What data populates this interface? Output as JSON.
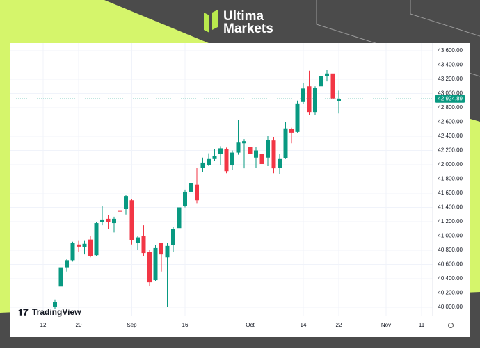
{
  "header": {
    "brand_line1": "Ultima",
    "brand_line2": "Markets"
  },
  "watermark": "TradingView",
  "chart_data": {
    "type": "candlestick",
    "categories": [
      "12",
      null,
      null,
      null,
      null,
      null,
      "20",
      null,
      null,
      null,
      null,
      null,
      null,
      null,
      null,
      "Sep",
      null,
      null,
      null,
      null,
      null,
      null,
      null,
      null,
      "16",
      null,
      null,
      null,
      null,
      null,
      null,
      null,
      null,
      null,
      null,
      "Oct",
      null,
      null,
      null,
      null,
      null,
      null,
      null,
      null,
      "14",
      null,
      null,
      null,
      null,
      null,
      "22",
      null,
      null,
      null,
      null,
      null,
      null,
      null,
      "Nov",
      null,
      null,
      null,
      null,
      null,
      "11"
    ],
    "open": [
      null,
      null,
      40010,
      40290,
      40560,
      40660,
      40880,
      40840,
      40950,
      40730,
      41200,
      41240,
      41180,
      41360,
      41380,
      41500,
      40900,
      41000,
      40780,
      40380,
      40900,
      40700,
      40870,
      41110,
      41420,
      41620,
      41720,
      41960,
      42000,
      42080,
      42150,
      42220,
      41990,
      42170,
      42300,
      42250,
      42100,
      42150,
      42100,
      42340,
      41960,
      42090,
      42500,
      42460,
      42880,
      43100,
      42740,
      43100,
      43240,
      43280,
      42890,
      null,
      null,
      null,
      null,
      null,
      null,
      null,
      null,
      null,
      null,
      null,
      null,
      null,
      null
    ],
    "high": [
      null,
      null,
      40110,
      40590,
      40680,
      40920,
      40930,
      40930,
      41000,
      41200,
      41420,
      41290,
      41270,
      41560,
      41580,
      41520,
      41000,
      41150,
      40800,
      40870,
      40900,
      40900,
      41130,
      41450,
      41650,
      41860,
      41960,
      42100,
      42160,
      42220,
      42260,
      42240,
      42200,
      42630,
      42360,
      42300,
      42250,
      42200,
      42400,
      42390,
      42150,
      42600,
      42520,
      42900,
      43150,
      43320,
      43100,
      43300,
      43330,
      43330,
      43040,
      null,
      null,
      null,
      null,
      null,
      null,
      null,
      null,
      null,
      null,
      null,
      null,
      null,
      null
    ],
    "low": [
      null,
      null,
      39980,
      40280,
      40500,
      40640,
      40780,
      40740,
      40700,
      40720,
      41150,
      41100,
      41050,
      41300,
      41300,
      40880,
      40800,
      40720,
      40300,
      40370,
      40500,
      40000,
      40780,
      41090,
      41400,
      41570,
      41460,
      41900,
      41980,
      42050,
      42000,
      41880,
      41930,
      42140,
      41950,
      41950,
      41960,
      41870,
      41980,
      41880,
      41870,
      42080,
      42300,
      42450,
      42850,
      42700,
      42700,
      43030,
      43170,
      42880,
      42720,
      null,
      null,
      null,
      null,
      null,
      null,
      null,
      null,
      null,
      null,
      null,
      null,
      null,
      null
    ],
    "close": [
      null,
      null,
      40070,
      40560,
      40660,
      40900,
      40850,
      40890,
      40720,
      41180,
      41230,
      41200,
      41240,
      41340,
      41560,
      40940,
      40980,
      40760,
      40350,
      40830,
      40740,
      40860,
      41100,
      41400,
      41620,
      41740,
      41500,
      42030,
      42080,
      42120,
      42230,
      41910,
      42170,
      42310,
      42330,
      42150,
      42200,
      42010,
      42350,
      41950,
      42080,
      42510,
      42450,
      42860,
      43070,
      42740,
      43080,
      43240,
      43280,
      42930,
      42924.89,
      null,
      null,
      null,
      null,
      null,
      null,
      null,
      null,
      null,
      null,
      null,
      null,
      null,
      null
    ],
    "up_color": "#089981",
    "down_color": "#f23645",
    "last_price": {
      "value": 42924.89,
      "label": "42,924.89"
    },
    "ylim": [
      40000,
      43600
    ],
    "yticks": [
      {
        "value": 40000,
        "label": "40,000.00"
      },
      {
        "value": 40200,
        "label": "40,200.00"
      },
      {
        "value": 40400,
        "label": "40,400.00"
      },
      {
        "value": 40600,
        "label": "40,600.00"
      },
      {
        "value": 40800,
        "label": "40,800.00"
      },
      {
        "value": 41000,
        "label": "41,000.00"
      },
      {
        "value": 41200,
        "label": "41,200.00"
      },
      {
        "value": 41400,
        "label": "41,400.00"
      },
      {
        "value": 41600,
        "label": "41,600.00"
      },
      {
        "value": 41800,
        "label": "41,800.00"
      },
      {
        "value": 42000,
        "label": "42,000.00"
      },
      {
        "value": 42200,
        "label": "42,200.00"
      },
      {
        "value": 42400,
        "label": "42,400.00"
      },
      {
        "value": 42600,
        "label": "42,600.00"
      },
      {
        "value": 42800,
        "label": "42,800.00"
      },
      {
        "value": 43000,
        "label": "43,000.00"
      },
      {
        "value": 43200,
        "label": "43,200.00"
      },
      {
        "value": 43400,
        "label": "43,400.00"
      },
      {
        "value": 43600,
        "label": "43,600.00"
      }
    ],
    "grid": true
  }
}
